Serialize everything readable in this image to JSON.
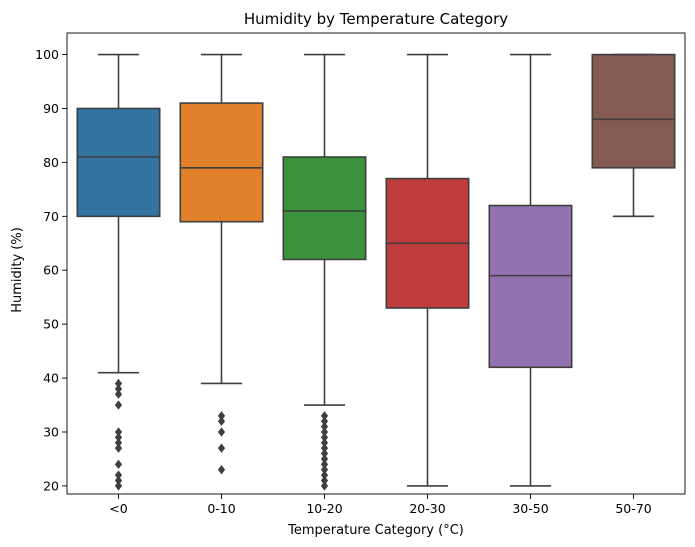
{
  "chart_data": {
    "type": "box",
    "title": "Humidity by Temperature Category",
    "xlabel": "Temperature Category (°C)",
    "ylabel": "Humidity (%)",
    "ylim": [
      18.5,
      104
    ],
    "yticks": [
      20,
      30,
      40,
      50,
      60,
      70,
      80,
      90,
      100
    ],
    "grid": false,
    "categories": [
      "<0",
      "0-10",
      "10-20",
      "20-30",
      "30-50",
      "50-70"
    ],
    "boxes": [
      {
        "category": "<0",
        "whisker_low": 41,
        "q1": 70,
        "median": 81,
        "q3": 90,
        "whisker_high": 100,
        "color": "#3274a1",
        "outliers": [
          20,
          21,
          22,
          24,
          27,
          28,
          29,
          30,
          35,
          37,
          38,
          39
        ]
      },
      {
        "category": "0-10",
        "whisker_low": 39,
        "q1": 69,
        "median": 79,
        "q3": 91,
        "whisker_high": 100,
        "color": "#e1812c",
        "outliers": [
          23,
          27,
          30,
          32,
          33
        ]
      },
      {
        "category": "10-20",
        "whisker_low": 35,
        "q1": 62,
        "median": 71,
        "q3": 81,
        "whisker_high": 100,
        "color": "#3a923a",
        "outliers": [
          20,
          21,
          22,
          23,
          24,
          25,
          26,
          27,
          28,
          29,
          30,
          31,
          32,
          33
        ]
      },
      {
        "category": "20-30",
        "whisker_low": 20,
        "q1": 53,
        "median": 65,
        "q3": 77,
        "whisker_high": 100,
        "color": "#c03d3e",
        "outliers": []
      },
      {
        "category": "30-50",
        "whisker_low": 20,
        "q1": 42,
        "median": 59,
        "q3": 72,
        "whisker_high": 100,
        "color": "#9372b2",
        "outliers": []
      },
      {
        "category": "50-70",
        "whisker_low": 70,
        "q1": 79,
        "median": 88,
        "q3": 100,
        "whisker_high": 100,
        "color": "#845b53",
        "outliers": []
      }
    ]
  }
}
